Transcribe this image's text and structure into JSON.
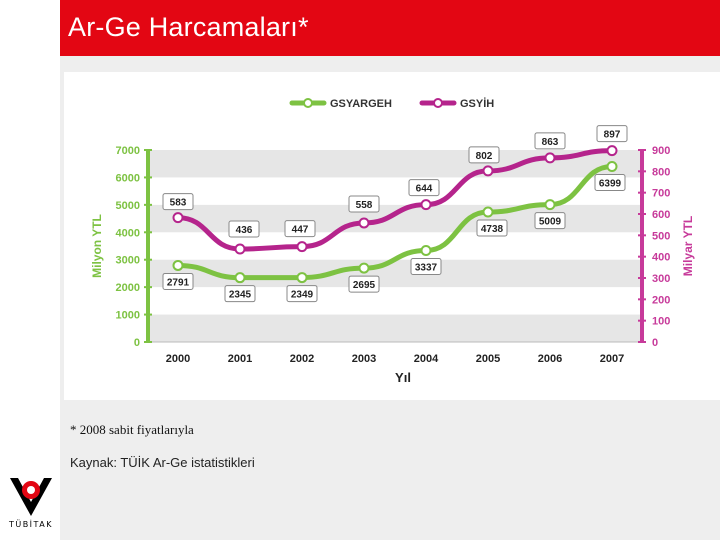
{
  "page": {
    "title": "Ar-Ge Harcamaları*"
  },
  "footnote": "* 2008 sabit fiyatlarıyla",
  "source": "Kaynak: TÜİK Ar-Ge istatistikleri",
  "logo": {
    "text": "TÜBİTAK",
    "icon": "tubitak-logo-icon"
  },
  "colors": {
    "title_bar": "#e30613",
    "green": "#7dc242",
    "magenta": "#b5248c",
    "left_axis": "#7dc242",
    "right_axis": "#c73a9a"
  },
  "chart_data": {
    "type": "line",
    "categories": [
      "2000",
      "2001",
      "2002",
      "2003",
      "2004",
      "2005",
      "2006",
      "2007"
    ],
    "xlabel": "Yıl",
    "ylabel_left": "Milyon YTL",
    "ylabel_right": "Milyar YTL",
    "ylim_left": [
      0,
      7000
    ],
    "ylim_right": [
      0,
      900
    ],
    "yticks_left": [
      "0",
      "1000",
      "2000",
      "3000",
      "4000",
      "5000",
      "6000",
      "7000"
    ],
    "yticks_right": [
      "0",
      "100",
      "200",
      "300",
      "400",
      "500",
      "600",
      "700",
      "800",
      "900"
    ],
    "legend_position": "top-center",
    "grid": "alternating horizontal bands",
    "series": [
      {
        "name": "GSYARGEH",
        "axis": "left",
        "color": "#7dc242",
        "values": [
          2791,
          2345,
          2349,
          2695,
          3337,
          4738,
          5009,
          6399
        ],
        "labels": [
          "2791",
          "2345",
          "2349",
          "2695",
          "3337",
          "4738",
          "5009",
          "6399"
        ]
      },
      {
        "name": "GSYİH",
        "axis": "right",
        "color": "#b5248c",
        "values": [
          583,
          436,
          447,
          558,
          644,
          802,
          863,
          897
        ],
        "labels": [
          "583",
          "436",
          "447",
          "558",
          "644",
          "802",
          "863",
          "897"
        ]
      }
    ]
  }
}
